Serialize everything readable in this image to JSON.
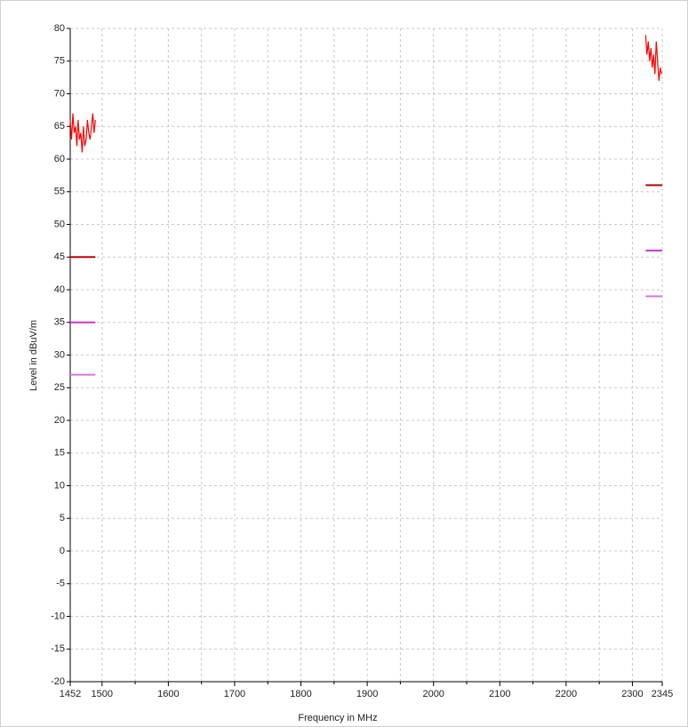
{
  "chart_data": {
    "type": "line",
    "xlabel": "Frequency in MHz",
    "ylabel": "Level in dBuV/m",
    "xlim": [
      1452,
      2345
    ],
    "ylim": [
      -20,
      80
    ],
    "xticks": [
      1452,
      1500,
      1600,
      1700,
      1800,
      1900,
      2000,
      2100,
      2200,
      2300,
      2345
    ],
    "x_minor_ticks": [
      1550,
      1650,
      1750,
      1850,
      1950,
      2050,
      2150,
      2250
    ],
    "yticks": [
      -20,
      -15,
      -10,
      -5,
      0,
      5,
      10,
      15,
      20,
      25,
      30,
      35,
      40,
      45,
      50,
      55,
      60,
      65,
      70,
      75,
      80
    ],
    "grid": true,
    "series": [
      {
        "color": "#ff0000",
        "x": [
          1452,
          1454,
          1456,
          1458,
          1460,
          1462,
          1464,
          1466,
          1468,
          1470,
          1472,
          1474,
          1476,
          1478,
          1480,
          1482,
          1484,
          1486,
          1488,
          1490,
          1900,
          2320,
          2322,
          2324,
          2326,
          2328,
          2330,
          2332,
          2334,
          2336,
          2338,
          2340,
          2342,
          2344
        ],
        "values": [
          66,
          63,
          67,
          64,
          65,
          62,
          66,
          63,
          64,
          61,
          65,
          62,
          63,
          66,
          64,
          63,
          65,
          67,
          64,
          66,
          null,
          79,
          76,
          78,
          75,
          77,
          74,
          76,
          73,
          78,
          75,
          72,
          74,
          73
        ]
      },
      {
        "color": "#c00000",
        "x": [
          1452,
          1490,
          1900,
          2320,
          2345
        ],
        "values": [
          45,
          45,
          null,
          56,
          56
        ]
      },
      {
        "color": "#d030d0",
        "x": [
          1452,
          1490,
          1900,
          2320,
          2345
        ],
        "values": [
          35,
          35,
          null,
          46,
          46
        ]
      },
      {
        "color": "#e070e8",
        "x": [
          1452,
          1490,
          1900,
          2320,
          2345
        ],
        "values": [
          27,
          27,
          null,
          39,
          39
        ]
      }
    ]
  }
}
